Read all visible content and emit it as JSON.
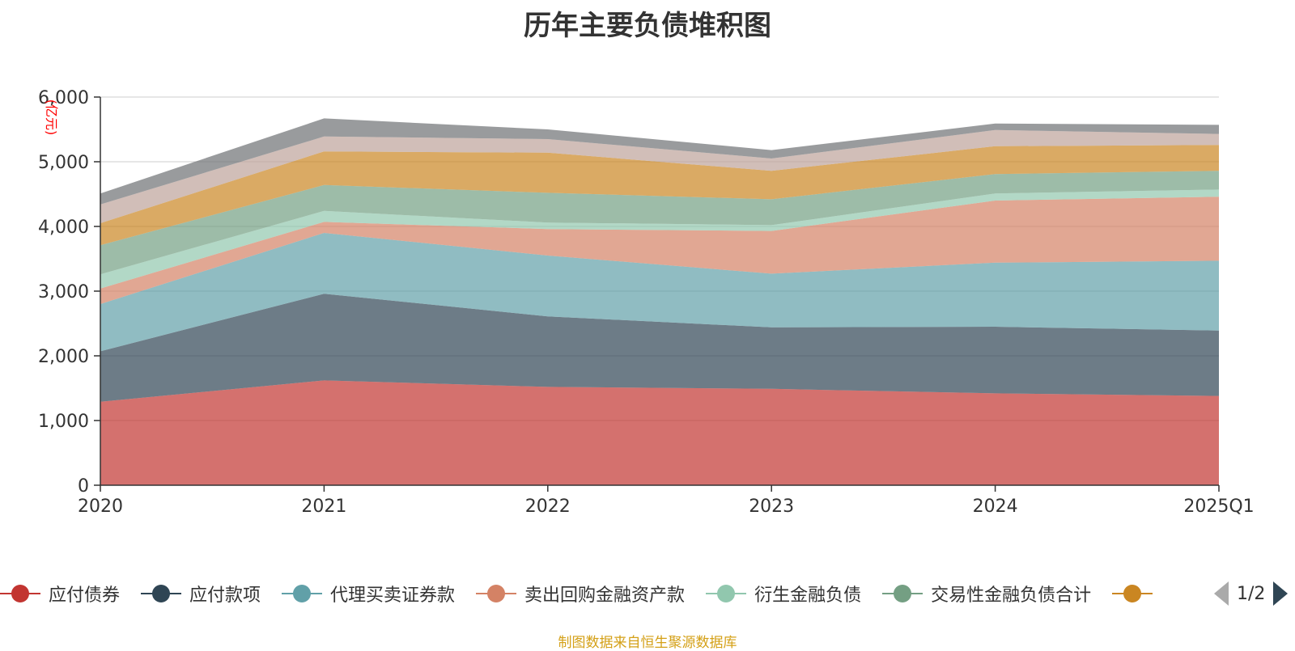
{
  "chart_data": {
    "type": "area",
    "stacked": true,
    "title": "历年主要负债堆积图",
    "ylabel": "(亿元)",
    "xlabel": "",
    "ylim": [
      0,
      6000
    ],
    "yticks": [
      0,
      1000,
      2000,
      3000,
      4000,
      5000,
      6000
    ],
    "ytick_labels": [
      "0",
      "1,000",
      "2,000",
      "3,000",
      "4,000",
      "5,000",
      "6,000"
    ],
    "categories": [
      "2020",
      "2021",
      "2022",
      "2023",
      "2024",
      "2025Q1"
    ],
    "grid": true,
    "series": [
      {
        "name": "应付债券",
        "color": "#c23531",
        "values": [
          1290,
          1620,
          1520,
          1490,
          1420,
          1380
        ]
      },
      {
        "name": "应付款项",
        "color": "#2f4554",
        "values": [
          780,
          1340,
          1090,
          950,
          1030,
          1010
        ]
      },
      {
        "name": "代理买卖证券款",
        "color": "#61a0a8",
        "values": [
          730,
          940,
          940,
          830,
          990,
          1080
        ]
      },
      {
        "name": "卖出回购金融资产款",
        "color": "#d48265",
        "values": [
          240,
          170,
          410,
          660,
          960,
          990
        ]
      },
      {
        "name": "衍生金融负债",
        "color": "#91c7ae",
        "values": [
          220,
          170,
          100,
          90,
          110,
          110
        ]
      },
      {
        "name": "交易性金融负债合计",
        "color": "#749f83",
        "values": [
          450,
          400,
          460,
          400,
          300,
          290
        ]
      },
      {
        "name": "",
        "color": "#ca8622",
        "values": [
          340,
          520,
          620,
          440,
          430,
          400
        ]
      },
      {
        "name": "",
        "color": "#bda29a",
        "values": [
          290,
          230,
          210,
          190,
          250,
          170
        ]
      },
      {
        "name": "",
        "color": "#6e7074",
        "values": [
          170,
          280,
          150,
          130,
          100,
          140
        ]
      }
    ]
  },
  "legend": {
    "items": [
      {
        "label": "应付债券",
        "color": "#c23531"
      },
      {
        "label": "应付款项",
        "color": "#2f4554"
      },
      {
        "label": "代理买卖证券款",
        "color": "#61a0a8"
      },
      {
        "label": "卖出回购金融资产款",
        "color": "#d48265"
      },
      {
        "label": "衍生金融负债",
        "color": "#91c7ae"
      },
      {
        "label": "交易性金融负债合计",
        "color": "#749f83"
      },
      {
        "label": "",
        "color": "#ca8622"
      }
    ],
    "page": "1/2"
  },
  "footer": "制图数据来自恒生聚源数据库"
}
